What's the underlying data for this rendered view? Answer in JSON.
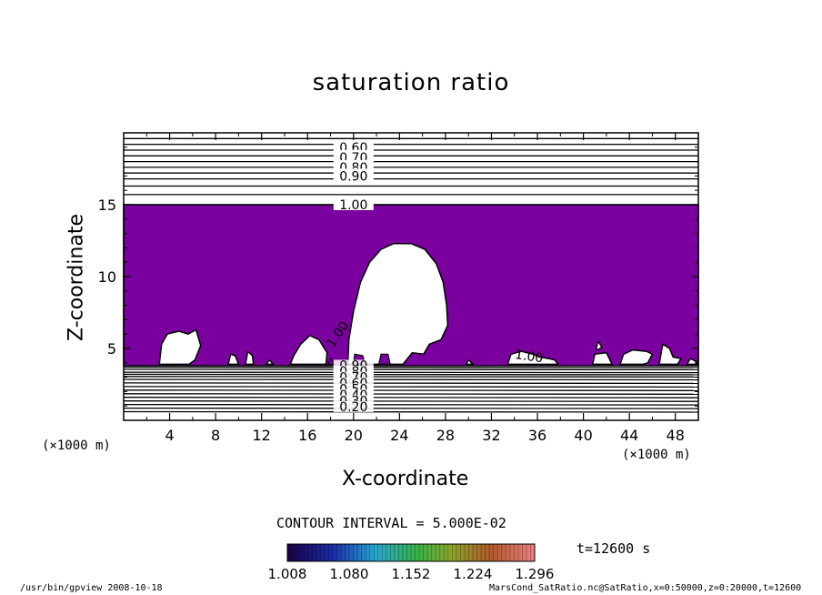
{
  "chart_data": {
    "type": "heatmap",
    "title": "saturation ratio",
    "xlabel": "X-coordinate",
    "ylabel": "Z-coordinate",
    "x_unit": "(×1000 m)",
    "xlim": [
      0,
      50
    ],
    "ylim": [
      0,
      20
    ],
    "x_ticks": [
      "4",
      "8",
      "12",
      "16",
      "20",
      "24",
      "28",
      "32",
      "36",
      "40",
      "44",
      "48"
    ],
    "y_ticks": [
      "5",
      "10",
      "15"
    ],
    "contour_labels_upper": [
      "0.60",
      "0.70",
      "0.80",
      "0.90",
      "1.00"
    ],
    "contour_labels_lower": [
      "0.90",
      "0.80",
      "0.70",
      "0.60",
      "0.50",
      "0.40",
      "0.30",
      "0.20"
    ],
    "contour_label_inline": [
      "1.00",
      "1.00"
    ],
    "contour_interval": "CONTOUR INTERVAL = 5.000E-02",
    "time": "t=12600 s",
    "colorbar_ticks": [
      "1.008",
      "1.080",
      "1.152",
      "1.224",
      "1.296"
    ],
    "colorbar_range": [
      1.008,
      1.296
    ],
    "shaded_region_color": "#7b00a0",
    "shaded_region_value_range": [
      1.0,
      1.05
    ]
  },
  "footer": {
    "left": "/usr/bin/gpview   2008-10-18",
    "right": "MarsCond_SatRatio.nc@SatRatio,x=0:50000,z=0:20000,t=12600"
  }
}
